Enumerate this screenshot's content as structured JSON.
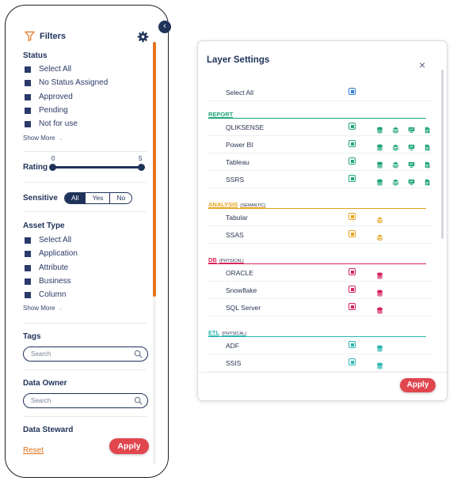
{
  "colors": {
    "navy": "#1f3259",
    "orange": "#e5731d",
    "apply_red": "#e1464f",
    "report_green": "#21a67a",
    "analysis_amber": "#e8a31c",
    "db_pink": "#d6235b",
    "etl_teal": "#2ab6b0"
  },
  "filters": {
    "title": "Filters",
    "status": {
      "heading": "Status",
      "items": [
        "Select All",
        "No Status Assigned",
        "Approved",
        "Pending",
        "Not for use"
      ],
      "show_more": "Show More"
    },
    "rating": {
      "heading": "Rating",
      "min": "0",
      "max": "5"
    },
    "sensitive": {
      "heading": "Sensitive",
      "options": [
        "All",
        "Yes",
        "No"
      ],
      "selected": "All"
    },
    "asset_type": {
      "heading": "Asset Type",
      "items": [
        "Select All",
        "Application",
        "Attribute",
        "Business",
        "Column"
      ],
      "show_more": "Show More"
    },
    "tags": {
      "heading": "Tags",
      "placeholder": "Search"
    },
    "data_owner": {
      "heading": "Data Owner",
      "placeholder": "Search"
    },
    "data_steward": {
      "heading": "Data Steward"
    },
    "reset_label": "Reset",
    "apply_label": "Apply"
  },
  "layer_settings": {
    "title": "Layer Settings",
    "close": "×",
    "select_all": "Select All",
    "groups": [
      {
        "name": "REPORT",
        "sub": "",
        "color": "#21a67a",
        "items": [
          "QLIKSENSE",
          "Power BI",
          "Tableau",
          "SSRS"
        ],
        "icons": [
          "database-icon",
          "layers-icon",
          "monitor-icon",
          "file-icon"
        ]
      },
      {
        "name": "ANALYSIS",
        "sub": "(SEMANTIC)",
        "color": "#e8a31c",
        "items": [
          "Tabular",
          "SSAS"
        ],
        "icons": [
          "cube-stack-icon"
        ]
      },
      {
        "name": "DB",
        "sub": "(PHYSICAL)",
        "color": "#d6235b",
        "items": [
          "ORACLE",
          "Snowflake",
          "SQL Server"
        ],
        "icons": [
          "database-icon"
        ]
      },
      {
        "name": "ETL",
        "sub": "(PHYSICAL)",
        "color": "#2ab6b0",
        "items": [
          "ADF",
          "SSIS"
        ],
        "icons": [
          "database-icon"
        ]
      }
    ],
    "apply_label": "Apply"
  }
}
